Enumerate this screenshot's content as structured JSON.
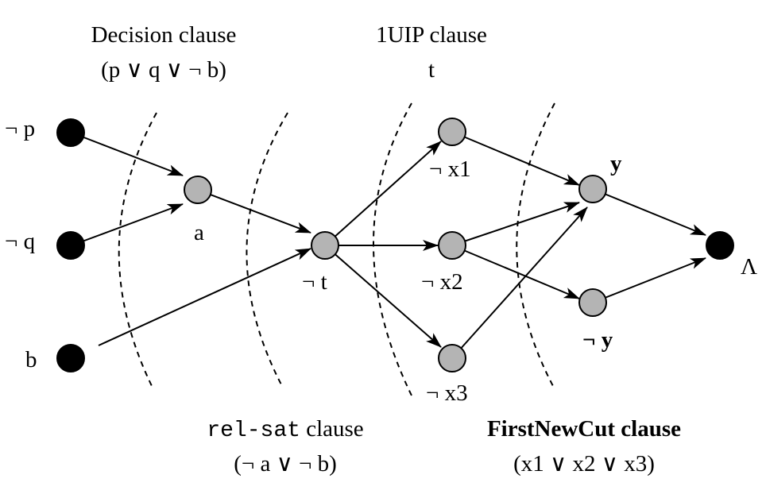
{
  "nodes": {
    "not_p": "¬ p",
    "not_q": "¬ q",
    "b": "b",
    "a": "a",
    "not_t": "¬ t",
    "not_x1": "¬ x1",
    "not_x2": "¬ x2",
    "not_x3": "¬ x3",
    "y": "y",
    "not_y": "¬ y",
    "conflict": "Λ"
  },
  "cuts": {
    "decision": {
      "title": "Decision clause",
      "clause": "(p ∨ q ∨ ¬ b)"
    },
    "first_uip": {
      "title": "1UIP clause",
      "clause": "t"
    },
    "relsat": {
      "title_mono": "rel-sat",
      "title_rest": "clause",
      "clause": "(¬ a ∨ ¬ b)"
    },
    "first_new_cut": {
      "title": "FirstNewCut clause",
      "clause": "(x1 ∨ x2 ∨ x3)"
    }
  },
  "colors": {
    "decision_node": "#000000",
    "implied_node": "#b4b4b4"
  }
}
